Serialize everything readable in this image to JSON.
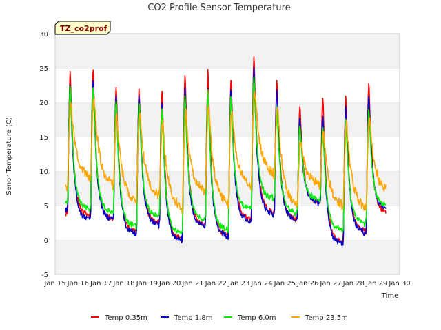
{
  "chart_data": {
    "type": "line",
    "title": "CO2 Profile Sensor Temperature",
    "tag": "TZ_co2prof",
    "xlabel": "Time",
    "ylabel": "Senor Temperature (C)",
    "ylim": [
      -5,
      30
    ],
    "yticks": [
      -5,
      0,
      5,
      10,
      15,
      20,
      25,
      30
    ],
    "xlim": [
      0,
      15
    ],
    "xticks": [
      "Jan 15",
      "Jan 16",
      "Jan 17",
      "Jan 18",
      "Jan 19",
      "Jan 20",
      "Jan 21",
      "Jan 22",
      "Jan 23",
      "Jan 24",
      "Jan 25",
      "Jan 26",
      "Jan 27",
      "Jan 28",
      "Jan 29",
      "Jan 30"
    ],
    "grid": "horizontal bands",
    "legend": "bottom",
    "series": [
      {
        "name": "Temp 0.35m",
        "color": "#ff0000",
        "daily": [
          {
            "start": 4.0,
            "peak": 24.5,
            "low": 3.5
          },
          {
            "start": 3.5,
            "peak": 25.0,
            "low": 3.0
          },
          {
            "start": 3.0,
            "peak": 22.8,
            "low": 1.2
          },
          {
            "start": 1.2,
            "peak": 22.0,
            "low": 2.5
          },
          {
            "start": 2.5,
            "peak": 21.8,
            "low": 0.2
          },
          {
            "start": 0.2,
            "peak": 24.5,
            "low": 2.2
          },
          {
            "start": 2.2,
            "peak": 24.7,
            "low": 0.7
          },
          {
            "start": 0.7,
            "peak": 23.5,
            "low": 3.0
          },
          {
            "start": 3.0,
            "peak": 27.0,
            "low": 4.0
          },
          {
            "start": 4.0,
            "peak": 23.5,
            "low": 3.0
          },
          {
            "start": 3.0,
            "peak": 19.5,
            "low": 5.5
          },
          {
            "start": 5.5,
            "peak": 20.5,
            "low": -0.3
          },
          {
            "start": -0.3,
            "peak": 21.0,
            "low": 1.3
          },
          {
            "start": 1.3,
            "peak": 23.0,
            "low": 4.0
          }
        ]
      },
      {
        "name": "Temp 1.8m",
        "color": "#0000cc",
        "daily": [
          {
            "start": 4.5,
            "peak": 23.0,
            "low": 3.0
          },
          {
            "start": 3.0,
            "peak": 23.5,
            "low": 3.0
          },
          {
            "start": 3.0,
            "peak": 21.0,
            "low": 1.0
          },
          {
            "start": 1.0,
            "peak": 21.0,
            "low": 2.3
          },
          {
            "start": 2.3,
            "peak": 20.0,
            "low": 0.0
          },
          {
            "start": 0.0,
            "peak": 22.0,
            "low": 2.0
          },
          {
            "start": 2.0,
            "peak": 22.5,
            "low": 0.6
          },
          {
            "start": 0.6,
            "peak": 22.0,
            "low": 2.8
          },
          {
            "start": 2.8,
            "peak": 25.0,
            "low": 3.8
          },
          {
            "start": 3.8,
            "peak": 22.0,
            "low": 3.0
          },
          {
            "start": 3.0,
            "peak": 18.0,
            "low": 5.5
          },
          {
            "start": 5.5,
            "peak": 18.0,
            "low": -0.5
          },
          {
            "start": -0.5,
            "peak": 19.5,
            "low": 1.2
          },
          {
            "start": 1.2,
            "peak": 21.0,
            "low": 4.5
          }
        ]
      },
      {
        "name": "Temp 6.0m",
        "color": "#00ee00",
        "daily": [
          {
            "start": 5.5,
            "peak": 22.5,
            "low": 4.5
          },
          {
            "start": 4.5,
            "peak": 22.5,
            "low": 4.0
          },
          {
            "start": 4.0,
            "peak": 20.5,
            "low": 2.0
          },
          {
            "start": 2.0,
            "peak": 20.0,
            "low": 3.5
          },
          {
            "start": 3.5,
            "peak": 19.0,
            "low": 1.0
          },
          {
            "start": 1.0,
            "peak": 21.0,
            "low": 3.0
          },
          {
            "start": 3.0,
            "peak": 22.0,
            "low": 1.5
          },
          {
            "start": 1.5,
            "peak": 21.0,
            "low": 4.5
          },
          {
            "start": 4.5,
            "peak": 24.0,
            "low": 6.0
          },
          {
            "start": 6.0,
            "peak": 19.5,
            "low": 4.0
          },
          {
            "start": 4.0,
            "peak": 17.0,
            "low": 6.0
          },
          {
            "start": 6.0,
            "peak": 16.5,
            "low": 1.5
          },
          {
            "start": 1.5,
            "peak": 17.5,
            "low": 2.5
          },
          {
            "start": 2.5,
            "peak": 19.0,
            "low": 5.0
          }
        ]
      },
      {
        "name": "Temp 23.5m",
        "color": "#ffa500",
        "daily": [
          {
            "start": 8.0,
            "peak": 20.0,
            "low": 9.0
          },
          {
            "start": 9.0,
            "peak": 21.0,
            "low": 8.0
          },
          {
            "start": 8.0,
            "peak": 18.0,
            "low": 5.5
          },
          {
            "start": 5.5,
            "peak": 18.5,
            "low": 6.5
          },
          {
            "start": 6.5,
            "peak": 17.0,
            "low": 4.5
          },
          {
            "start": 4.5,
            "peak": 18.5,
            "low": 7.0
          },
          {
            "start": 7.0,
            "peak": 19.5,
            "low": 5.0
          },
          {
            "start": 5.0,
            "peak": 19.0,
            "low": 8.0
          },
          {
            "start": 8.0,
            "peak": 22.0,
            "low": 9.5
          },
          {
            "start": 9.5,
            "peak": 19.0,
            "low": 5.0
          },
          {
            "start": 5.0,
            "peak": 14.5,
            "low": 8.0
          },
          {
            "start": 8.0,
            "peak": 15.5,
            "low": 5.0
          },
          {
            "start": 5.0,
            "peak": 17.0,
            "low": 4.5
          },
          {
            "start": 4.5,
            "peak": 17.5,
            "low": 7.0
          }
        ]
      }
    ]
  }
}
